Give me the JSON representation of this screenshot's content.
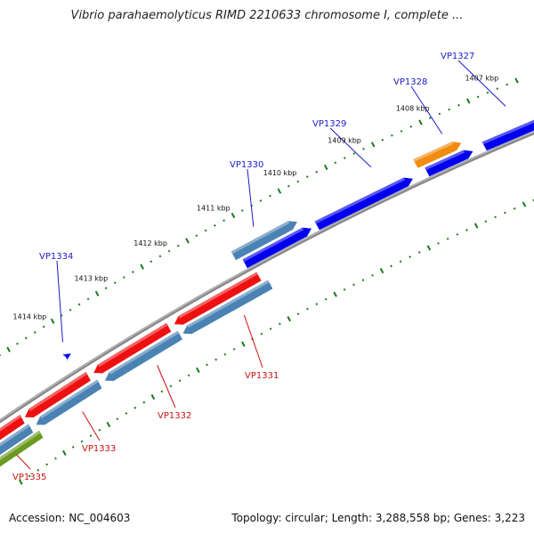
{
  "title": "Vibrio parahaemolyticus RIMD 2210633 chromosome I, complete ...",
  "footer": {
    "accession": "Accession: NC_004603",
    "summary": "Topology: circular; Length: 3,288,558 bp; Genes: 3,223"
  },
  "colors": {
    "plus_primary": "#0000ee",
    "plus_secondary": "#4a82b4",
    "plus_accent": "#f08c10",
    "minus_primary": "#ee1010",
    "minus_secondary": "#4a82b4",
    "minus_accent": "#6a9a20",
    "backbone": "#888888",
    "ticks": "#1a7a1a",
    "label_plus": "#1a1acc",
    "label_minus": "#cc1111"
  },
  "scale_ticks": [
    "1407 kbp",
    "1408 kbp",
    "1409 kbp",
    "1410 kbp",
    "1411 kbp",
    "1412 kbp",
    "1413 kbp",
    "1414 kbp"
  ],
  "gene_labels": [
    {
      "name": "VP1327",
      "strand": "plus"
    },
    {
      "name": "VP1328",
      "strand": "plus"
    },
    {
      "name": "VP1329",
      "strand": "plus"
    },
    {
      "name": "VP1330",
      "strand": "plus"
    },
    {
      "name": "VP1334",
      "strand": "plus"
    },
    {
      "name": "VP1331",
      "strand": "minus"
    },
    {
      "name": "VP1332",
      "strand": "minus"
    },
    {
      "name": "VP1333",
      "strand": "minus"
    },
    {
      "name": "VP1335",
      "strand": "minus"
    }
  ]
}
